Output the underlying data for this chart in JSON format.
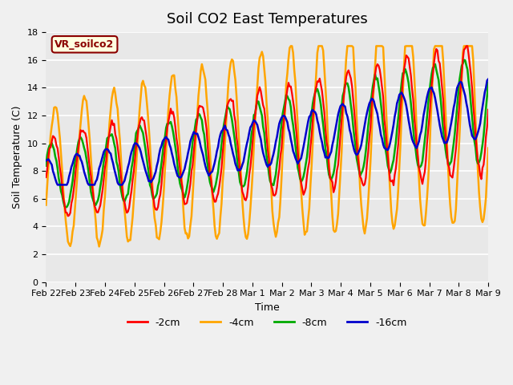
{
  "title": "Soil CO2 East Temperatures",
  "ylabel": "Soil Temperature (C)",
  "xlabel": "Time",
  "legend_label": "VR_soilco2",
  "ylim": [
    0,
    18
  ],
  "series_labels": [
    "-2cm",
    "-4cm",
    "-8cm",
    "-16cm"
  ],
  "series_colors": [
    "#ff0000",
    "#ffa500",
    "#00aa00",
    "#0000cc"
  ],
  "x_tick_labels": [
    "Feb 22",
    "Feb 23",
    "Feb 24",
    "Feb 25",
    "Feb 26",
    "Feb 27",
    "Feb 28",
    "Mar 1",
    "Mar 2",
    "Mar 3",
    "Mar 4",
    "Mar 5",
    "Mar 6",
    "Mar 7",
    "Mar 8",
    "Mar 9"
  ],
  "bg_color": "#f0f0f0",
  "plot_bg": "#e8e8e8",
  "title_fontsize": 13,
  "axis_fontsize": 9,
  "tick_fontsize": 8,
  "legend_fontsize": 9
}
